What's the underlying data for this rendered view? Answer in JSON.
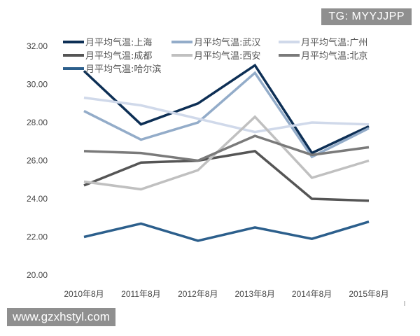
{
  "watermark_top": "TG: MYYJJPP",
  "watermark_bottom": "www.gzxhstyl.com",
  "chart_data": {
    "type": "line",
    "title": "",
    "xlabel": "",
    "ylabel": "",
    "categories": [
      "2010年8月",
      "2011年8月",
      "2012年8月",
      "2013年8月",
      "2014年8月",
      "2015年8月"
    ],
    "ylim": [
      20,
      32
    ],
    "yticks": [
      "20.00",
      "22.00",
      "24.00",
      "26.00",
      "28.00",
      "30.00",
      "32.00"
    ],
    "grid": false,
    "legend_placement": "top",
    "series": [
      {
        "name": "月平均气温:上海",
        "color": "#0d2f55",
        "values": [
          30.7,
          27.9,
          29.0,
          31.0,
          26.4,
          27.8
        ]
      },
      {
        "name": "月平均气温:武汉",
        "color": "#93acc9",
        "values": [
          28.6,
          27.1,
          28.0,
          30.6,
          26.2,
          27.7
        ]
      },
      {
        "name": "月平均气温:广州",
        "color": "#d0d9ea",
        "values": [
          29.3,
          28.9,
          28.2,
          27.5,
          28.0,
          27.9
        ]
      },
      {
        "name": "月平均气温:成都",
        "color": "#555555",
        "values": [
          24.7,
          25.9,
          26.0,
          26.5,
          24.0,
          23.9
        ]
      },
      {
        "name": "月平均气温:西安",
        "color": "#c0c0c0",
        "values": [
          24.9,
          24.5,
          25.5,
          28.3,
          25.1,
          26.0
        ]
      },
      {
        "name": "月平均气温:北京",
        "color": "#7a7a7a",
        "values": [
          26.5,
          26.4,
          26.0,
          27.3,
          26.3,
          26.7
        ]
      },
      {
        "name": "月平均气温:哈尔滨",
        "color": "#2c5f8c",
        "values": [
          22.0,
          22.7,
          21.8,
          22.5,
          21.9,
          22.8
        ]
      }
    ]
  }
}
